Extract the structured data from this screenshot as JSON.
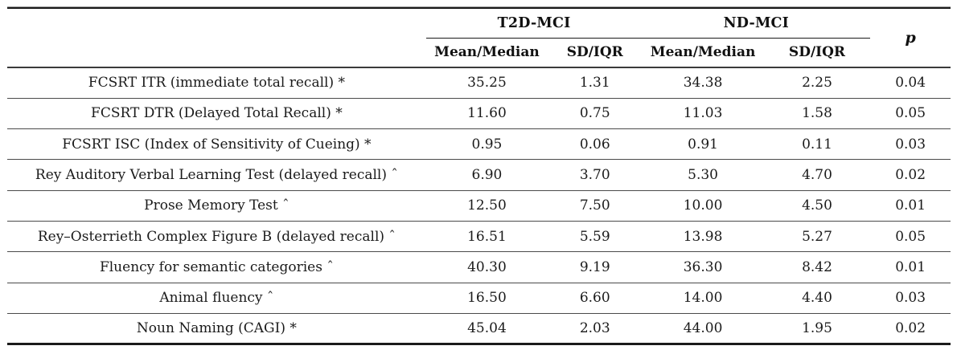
{
  "table": {
    "groups": [
      {
        "label": "T2D-MCI"
      },
      {
        "label": "ND-MCI"
      }
    ],
    "p_header": "p",
    "sub_headers": [
      "Mean/Median",
      "SD/IQR",
      "Mean/Median",
      "SD/IQR"
    ],
    "rows": [
      {
        "label": "FCSRT ITR (immediate total recall) *",
        "values": [
          "35.25",
          "1.31",
          "34.38",
          "2.25",
          "0.04"
        ]
      },
      {
        "label": "FCSRT DTR (Delayed Total Recall) *",
        "values": [
          "11.60",
          "0.75",
          "11.03",
          "1.58",
          "0.05"
        ]
      },
      {
        "label": "FCSRT ISC (Index of Sensitivity of Cueing) *",
        "values": [
          "0.95",
          "0.06",
          "0.91",
          "0.11",
          "0.03"
        ]
      },
      {
        "label": "Rey Auditory Verbal Learning Test (delayed recall) ˆ",
        "values": [
          "6.90",
          "3.70",
          "5.30",
          "4.70",
          "0.02"
        ]
      },
      {
        "label": "Prose Memory Test ˆ",
        "values": [
          "12.50",
          "7.50",
          "10.00",
          "4.50",
          "0.01"
        ]
      },
      {
        "label": "Rey–Osterrieth Complex Figure B (delayed recall) ˆ",
        "values": [
          "16.51",
          "5.59",
          "13.98",
          "5.27",
          "0.05"
        ]
      },
      {
        "label": "Fluency for semantic categories ˆ",
        "values": [
          "40.30",
          "9.19",
          "36.30",
          "8.42",
          "0.01"
        ]
      },
      {
        "label": "Animal fluency ˆ",
        "values": [
          "16.50",
          "6.60",
          "14.00",
          "4.40",
          "0.03"
        ]
      },
      {
        "label": "Noun Naming (CAGI) *",
        "values": [
          "45.04",
          "2.03",
          "44.00",
          "1.95",
          "0.02"
        ]
      }
    ]
  },
  "colors": {
    "text": "#1a1a1a",
    "rule_heavy": "#1b1b1b",
    "rule_light": "#4a4a4a",
    "background": "#ffffff"
  }
}
